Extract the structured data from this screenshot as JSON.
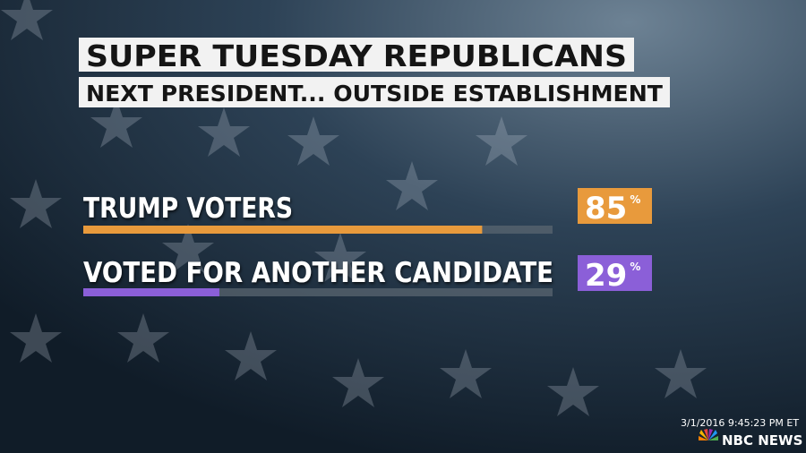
{
  "chart_data": {
    "type": "bar",
    "title": "SUPER TUESDAY REPUBLICANS",
    "subtitle": "NEXT PRESIDENT... OUTSIDE ESTABLISHMENT",
    "categories": [
      "TRUMP VOTERS",
      "VOTED FOR ANOTHER CANDIDATE"
    ],
    "values": [
      85,
      29
    ],
    "value_labels": [
      "85%",
      "29%"
    ],
    "colors": [
      "#e89a3c",
      "#8b5fd8"
    ],
    "xlim": [
      0,
      100
    ]
  },
  "footer": {
    "timestamp": "3/1/2016 9:45:23 PM ET",
    "network": "NBC NEWS"
  }
}
